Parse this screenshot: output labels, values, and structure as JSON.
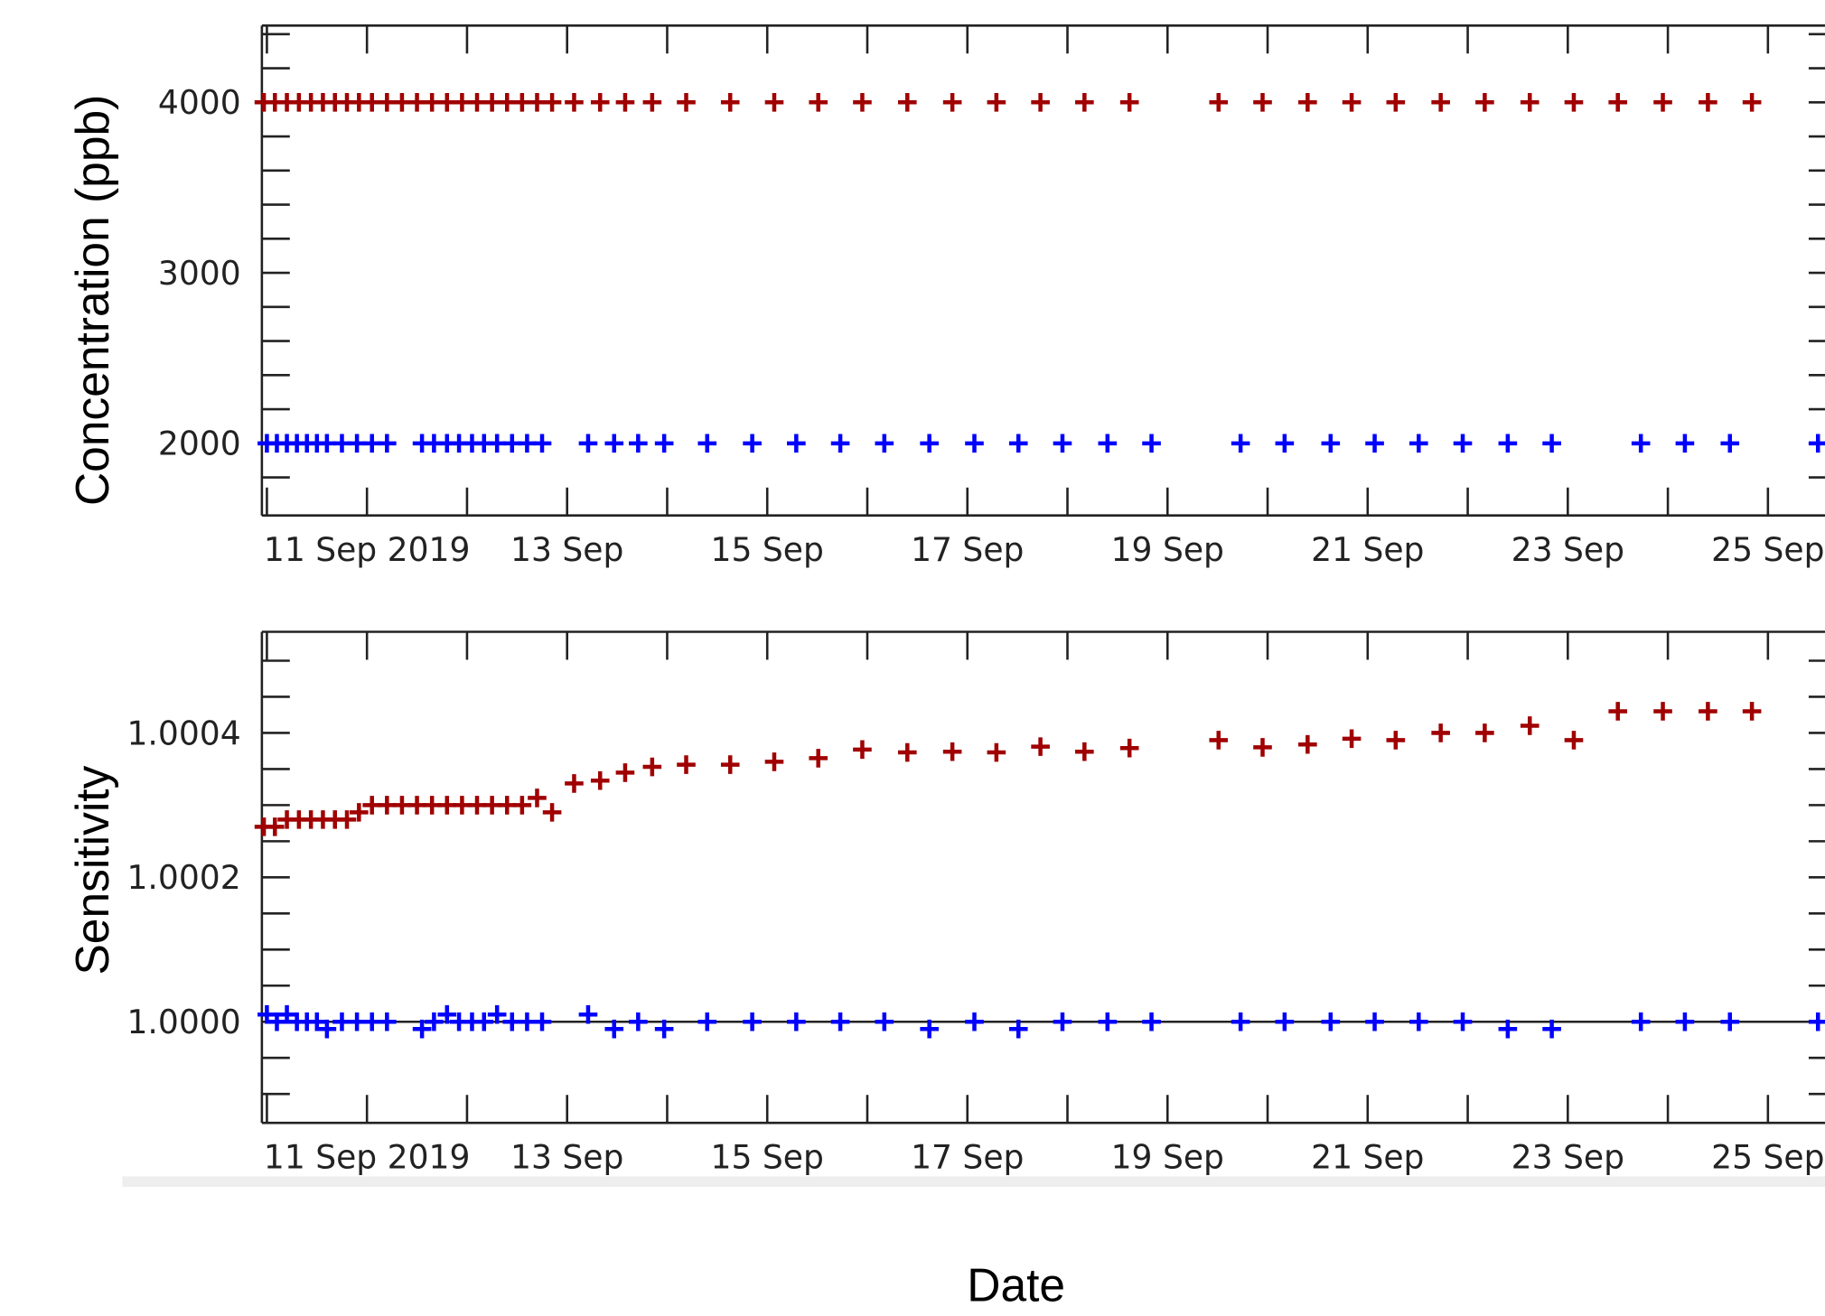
{
  "chart_data": [
    {
      "type": "scatter",
      "ylabel": "Concentration (ppb)",
      "xlim": [
        9.95,
        25.57
      ],
      "xticks": [
        {
          "value": 11,
          "label": "11 Sep 2019"
        },
        {
          "value": 13,
          "label": "13 Sep"
        },
        {
          "value": 15,
          "label": "15 Sep"
        },
        {
          "value": 17,
          "label": "17 Sep"
        },
        {
          "value": 19,
          "label": "19 Sep"
        },
        {
          "value": 21,
          "label": "21 Sep"
        },
        {
          "value": 23,
          "label": "23 Sep"
        },
        {
          "value": 25,
          "label": "25 Sep"
        }
      ],
      "xminor_ticks": [
        10,
        12,
        14,
        16,
        18,
        20,
        22,
        24
      ],
      "ylim": [
        1577,
        4450
      ],
      "yticks": [
        2000,
        3000,
        4000
      ],
      "yminor_ticks": [
        1800,
        2200,
        2400,
        2600,
        2800,
        3200,
        3400,
        3600,
        3800,
        4200,
        4400
      ],
      "series": [
        {
          "color": "#a00000",
          "x": [
            9.97,
            10.08,
            10.2,
            10.32,
            10.44,
            10.56,
            10.68,
            10.8,
            10.92,
            11.05,
            11.2,
            11.35,
            11.5,
            11.65,
            11.8,
            11.95,
            12.1,
            12.25,
            12.4,
            12.55,
            12.7,
            12.85,
            13.07,
            13.33,
            13.58,
            13.85,
            14.19,
            14.63,
            15.07,
            15.51,
            15.95,
            16.4,
            16.85,
            17.29,
            17.73,
            18.17,
            18.62,
            19.51,
            19.95,
            20.4,
            20.84,
            21.28,
            21.73,
            22.17,
            22.62,
            23.06,
            23.5,
            23.95,
            24.4,
            24.84
          ],
          "values": [
            4000,
            4000,
            4000,
            4000,
            4000,
            4000,
            4000,
            4000,
            4000,
            4000,
            4000,
            4000,
            4000,
            4000,
            4000,
            4000,
            4000,
            4000,
            4000,
            4000,
            4000,
            4000,
            4000,
            4000,
            4000,
            4000,
            4000,
            4000,
            4000,
            4000,
            4000,
            4000,
            4000,
            4000,
            4000,
            4000,
            4000,
            4000,
            4000,
            4000,
            4000,
            4000,
            4000,
            4000,
            4000,
            4000,
            4000,
            4000,
            4000,
            4000
          ]
        },
        {
          "color": "#0000ff",
          "x": [
            10.0,
            10.1,
            10.2,
            10.3,
            10.4,
            10.5,
            10.6,
            10.75,
            10.9,
            11.05,
            11.2,
            11.55,
            11.67,
            11.8,
            11.92,
            12.05,
            12.17,
            12.3,
            12.45,
            12.6,
            12.75,
            13.21,
            13.47,
            13.71,
            13.97,
            14.4,
            14.85,
            15.29,
            15.73,
            16.17,
            16.62,
            17.07,
            17.51,
            17.95,
            18.4,
            18.84,
            19.73,
            20.17,
            20.63,
            21.07,
            21.51,
            21.95,
            22.4,
            22.84,
            23.73,
            24.17,
            24.62,
            25.5
          ],
          "values": [
            2000,
            2000,
            2000,
            2000,
            2000,
            2000,
            2000,
            2000,
            2000,
            2000,
            2000,
            2000,
            2000,
            2000,
            2000,
            2000,
            2000,
            2000,
            2000,
            2000,
            2000,
            2000,
            2000,
            2000,
            2000,
            2000,
            2000,
            2000,
            2000,
            2000,
            2000,
            2000,
            2000,
            2000,
            2000,
            2000,
            2000,
            2000,
            2000,
            2000,
            2000,
            2000,
            2000,
            2000,
            2000,
            2000,
            2000,
            2000
          ]
        }
      ]
    },
    {
      "type": "scatter",
      "ylabel": "Sensitivity",
      "xlabel": "Date",
      "xlim": [
        9.95,
        25.57
      ],
      "xticks": [
        {
          "value": 11,
          "label": "11 Sep 2019"
        },
        {
          "value": 13,
          "label": "13 Sep"
        },
        {
          "value": 15,
          "label": "15 Sep"
        },
        {
          "value": 17,
          "label": "17 Sep"
        },
        {
          "value": 19,
          "label": "19 Sep"
        },
        {
          "value": 21,
          "label": "21 Sep"
        },
        {
          "value": 23,
          "label": "23 Sep"
        },
        {
          "value": 25,
          "label": "25 Sep"
        }
      ],
      "xminor_ticks": [
        10,
        12,
        14,
        16,
        18,
        20,
        22,
        24
      ],
      "ylim": [
        0.99986,
        1.00054
      ],
      "yticks": [
        {
          "value": 1,
          "label": "1.0000"
        },
        1.0002,
        1.0004
      ],
      "yminor_ticks": [
        0.9999,
        0.99995,
        1.00005,
        1.0001,
        1.00015,
        1.00025,
        1.0003,
        1.00035,
        1.00045,
        1.0005
      ],
      "hline": 1,
      "series": [
        {
          "color": "#a00000",
          "x": [
            9.97,
            10.08,
            10.2,
            10.32,
            10.44,
            10.56,
            10.68,
            10.8,
            10.92,
            11.05,
            11.2,
            11.35,
            11.5,
            11.65,
            11.8,
            11.95,
            12.1,
            12.25,
            12.4,
            12.55,
            12.7,
            12.85,
            13.07,
            13.33,
            13.58,
            13.85,
            14.19,
            14.63,
            15.07,
            15.51,
            15.95,
            16.4,
            16.85,
            17.29,
            17.73,
            18.17,
            18.62,
            19.51,
            19.95,
            20.4,
            20.84,
            21.28,
            21.73,
            22.17,
            22.62,
            23.06,
            23.5,
            23.95,
            24.4,
            24.84
          ],
          "values": [
            1.00027,
            1.00027,
            1.00028,
            1.00028,
            1.00028,
            1.00028,
            1.00028,
            1.00028,
            1.00029,
            1.0003,
            1.0003,
            1.0003,
            1.0003,
            1.0003,
            1.0003,
            1.0003,
            1.0003,
            1.0003,
            1.0003,
            1.0003,
            1.00031,
            1.00029,
            1.00033,
            1.000334,
            1.000345,
            1.000353,
            1.000356,
            1.000356,
            1.00036,
            1.000365,
            1.000377,
            1.000373,
            1.000374,
            1.000373,
            1.000381,
            1.000374,
            1.000379,
            1.00039,
            1.00038,
            1.000384,
            1.000392,
            1.00039,
            1.0004,
            1.0004,
            1.00041,
            1.00039,
            1.00043,
            1.00043,
            1.00043,
            1.00043
          ]
        },
        {
          "color": "#0000ff",
          "x": [
            10.0,
            10.1,
            10.2,
            10.3,
            10.4,
            10.5,
            10.6,
            10.75,
            10.9,
            11.05,
            11.2,
            11.55,
            11.67,
            11.8,
            11.92,
            12.05,
            12.17,
            12.3,
            12.45,
            12.6,
            12.75,
            13.21,
            13.47,
            13.71,
            13.97,
            14.4,
            14.85,
            15.29,
            15.73,
            16.17,
            16.62,
            17.07,
            17.51,
            17.95,
            18.4,
            18.84,
            19.73,
            20.17,
            20.63,
            21.07,
            21.51,
            21.95,
            22.4,
            22.84,
            23.73,
            24.17,
            24.62,
            25.5
          ],
          "values": [
            1.00001,
            1.0,
            1.00001,
            1.0,
            1.0,
            1.0,
            0.99999,
            1.0,
            1.0,
            1.0,
            1.0,
            0.99999,
            1.0,
            1.00001,
            1.0,
            1.0,
            1.0,
            1.00001,
            1.0,
            1.0,
            1.0,
            1.00001,
            0.99999,
            1.0,
            0.99999,
            1.0,
            1.0,
            1.0,
            1.0,
            1.0,
            0.99999,
            1.0,
            0.99999,
            1.0,
            1.0,
            1.0,
            1.0,
            1.0,
            1.0,
            1.0,
            1.0,
            1.0,
            0.99999,
            0.99999,
            1.0,
            1.0,
            1.0,
            1.0
          ]
        }
      ]
    }
  ]
}
